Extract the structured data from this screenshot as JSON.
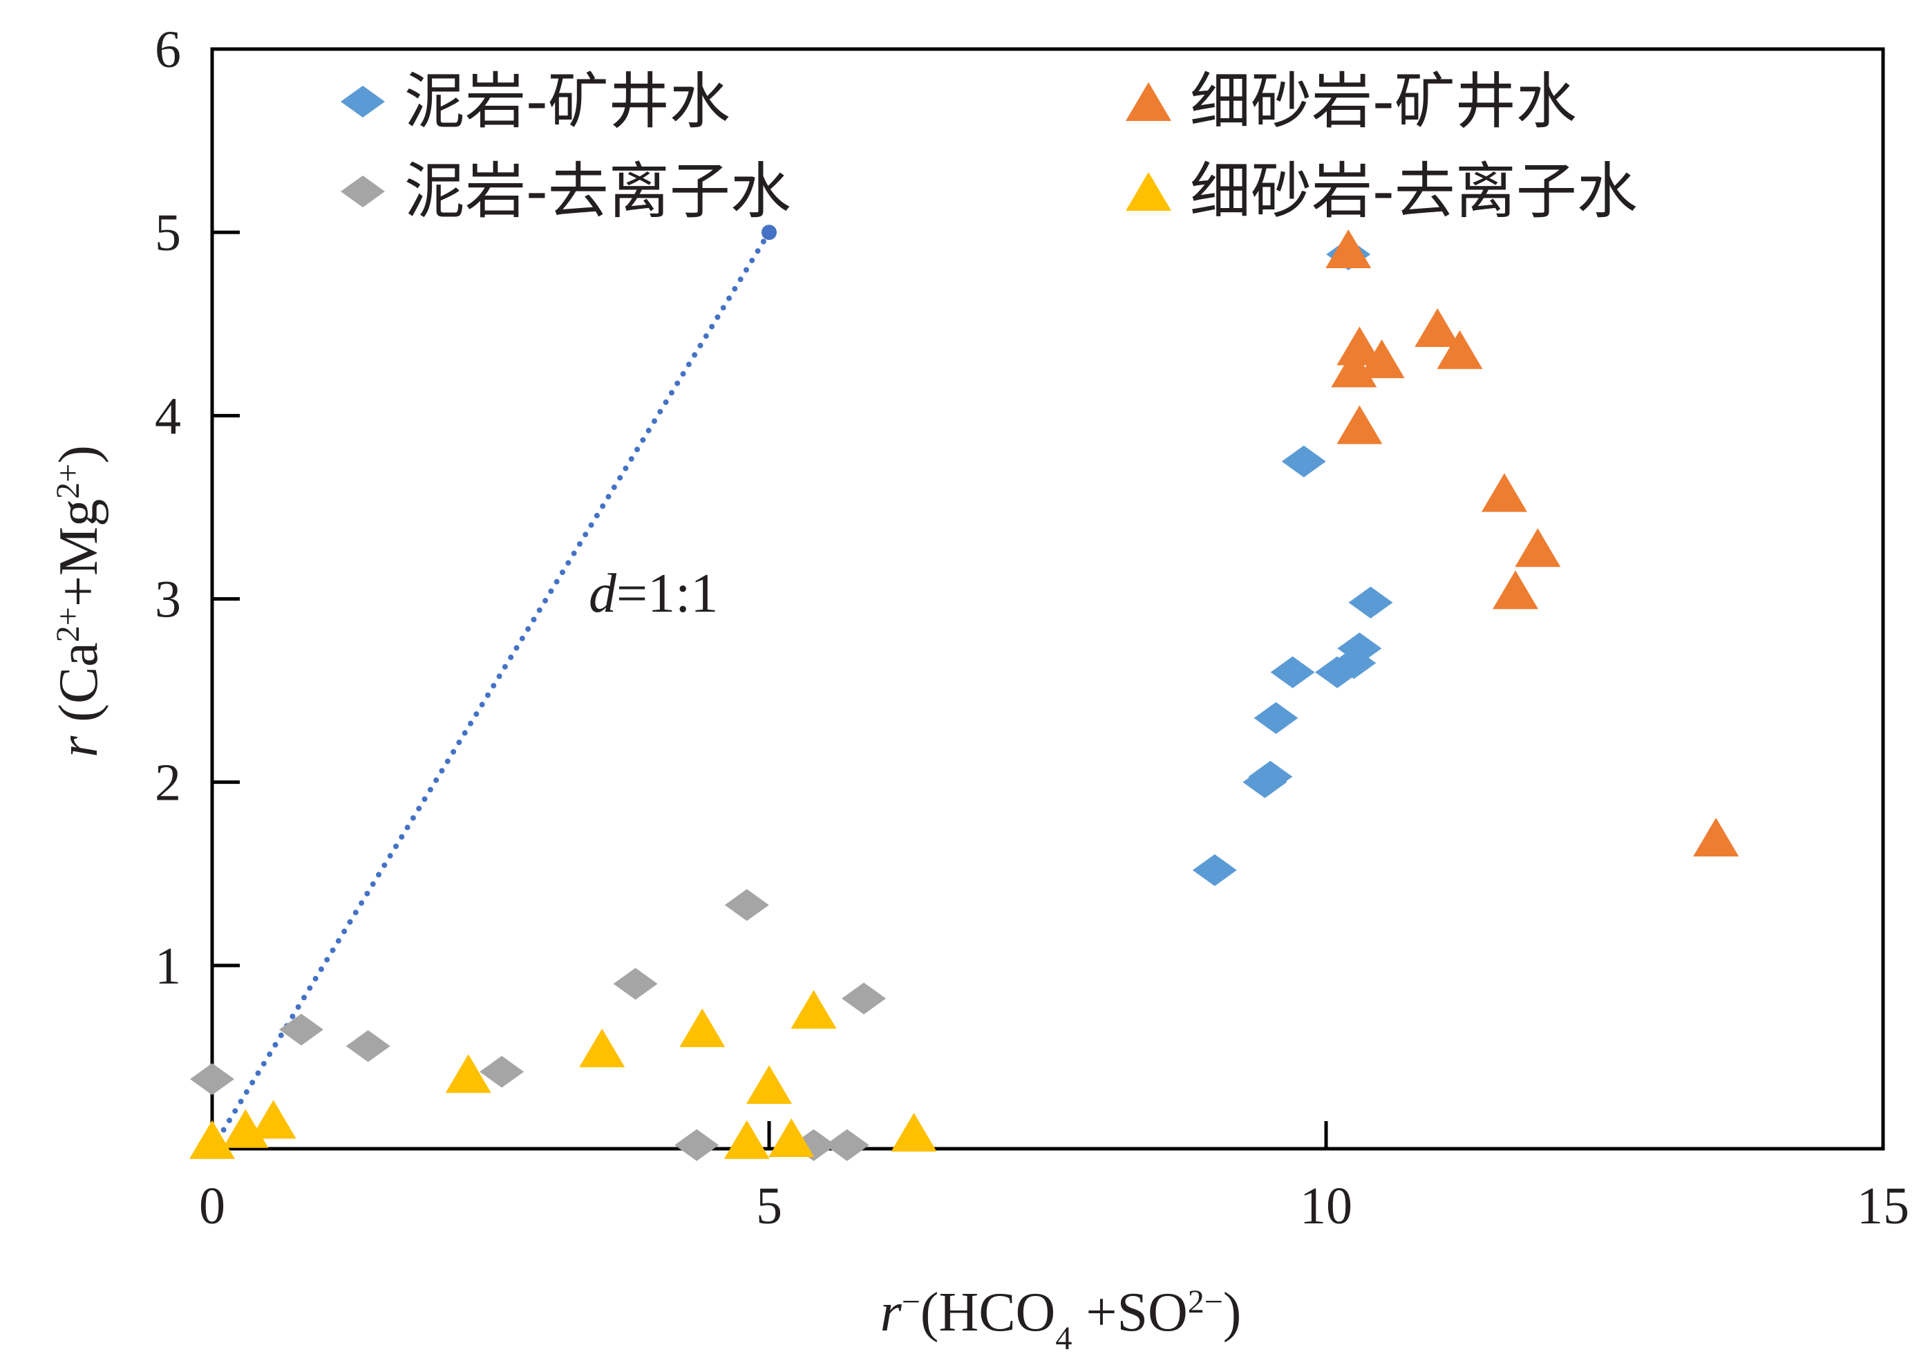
{
  "chart_data": {
    "type": "scatter",
    "xlabel": {
      "prefix": "r",
      "sup1": "−",
      "middle": "(HCO",
      "sub1": "4",
      "middle2": " +SO",
      "sup2": "2−",
      "suffix": ")"
    },
    "ylabel": {
      "prefix": "r",
      "middle": " (Ca",
      "sup1": "2+",
      "middle2": "+Mg",
      "sup2": "2+",
      "suffix": ")"
    },
    "xlim": [
      0,
      15
    ],
    "ylim": [
      0,
      6
    ],
    "xticks": [
      0,
      5,
      10,
      15
    ],
    "yticks": [
      1,
      2,
      3,
      4,
      5,
      6
    ],
    "grid": false,
    "legend_position": "top",
    "series": [
      {
        "name": "泥岩-矿井水",
        "marker": "diamond",
        "color": "#5b9bd5",
        "points": [
          [
            10.2,
            4.88
          ],
          [
            9.8,
            3.75
          ],
          [
            10.4,
            2.98
          ],
          [
            10.3,
            2.73
          ],
          [
            10.25,
            2.65
          ],
          [
            10.1,
            2.6
          ],
          [
            9.7,
            2.6
          ],
          [
            9.55,
            2.35
          ],
          [
            9.5,
            2.03
          ],
          [
            9.45,
            2.0
          ],
          [
            9.0,
            1.52
          ]
        ]
      },
      {
        "name": "细砂岩-矿井水",
        "marker": "triangle",
        "color": "#ed7d31",
        "points": [
          [
            10.2,
            4.88
          ],
          [
            11.0,
            4.45
          ],
          [
            11.2,
            4.33
          ],
          [
            10.3,
            4.35
          ],
          [
            10.5,
            4.28
          ],
          [
            10.25,
            4.23
          ],
          [
            10.3,
            3.92
          ],
          [
            11.6,
            3.55
          ],
          [
            11.9,
            3.25
          ],
          [
            11.7,
            3.02
          ],
          [
            13.5,
            1.67
          ]
        ]
      },
      {
        "name": "泥岩-去离子水",
        "marker": "diamond",
        "color": "#a5a5a5",
        "points": [
          [
            0.0,
            0.38
          ],
          [
            0.8,
            0.65
          ],
          [
            1.4,
            0.56
          ],
          [
            2.6,
            0.42
          ],
          [
            3.8,
            0.9
          ],
          [
            4.8,
            1.33
          ],
          [
            5.85,
            0.82
          ],
          [
            4.35,
            0.02
          ],
          [
            5.4,
            0.02
          ],
          [
            5.7,
            0.02
          ]
        ]
      },
      {
        "name": "细砂岩-去离子水",
        "marker": "triangle",
        "color": "#ffc000",
        "points": [
          [
            0.0,
            0.02
          ],
          [
            0.3,
            0.08
          ],
          [
            0.55,
            0.13
          ],
          [
            2.3,
            0.38
          ],
          [
            3.5,
            0.52
          ],
          [
            4.4,
            0.63
          ],
          [
            5.4,
            0.73
          ],
          [
            5.0,
            0.32
          ],
          [
            4.8,
            0.02
          ],
          [
            5.2,
            0.03
          ],
          [
            6.3,
            0.06
          ]
        ]
      }
    ],
    "reference_line": {
      "label_italic": "d",
      "label_rest": "=1:1",
      "color": "#4472c4",
      "start": [
        0.0,
        0.0
      ],
      "end": [
        5.0,
        5.0
      ]
    }
  }
}
